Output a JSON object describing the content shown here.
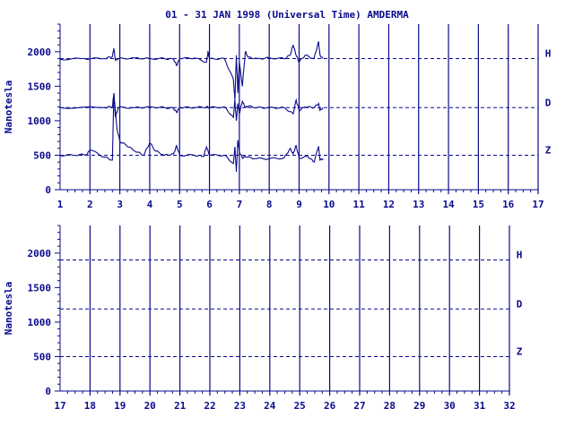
{
  "title": "01 - 31 JAN 1998 (Universal Time) AMDERMA",
  "colors": {
    "ink": "#0a0a8c",
    "background": "#ffffff"
  },
  "chart_data": [
    {
      "type": "line",
      "ylabel": "Nanotesla",
      "ylim": [
        0,
        2400
      ],
      "yticks": [
        0,
        500,
        1000,
        1500,
        2000
      ],
      "xlim": [
        1,
        17
      ],
      "xticks": [
        1,
        2,
        3,
        4,
        5,
        6,
        7,
        8,
        9,
        10,
        11,
        12,
        13,
        14,
        15,
        16,
        17
      ],
      "grid": "vertical day lines",
      "baselines": [
        {
          "name": "H",
          "value": 1900
        },
        {
          "name": "D",
          "value": 1190
        },
        {
          "name": "Z",
          "value": 500
        }
      ],
      "series": [
        {
          "name": "H",
          "x": [
            1.0,
            1.8,
            2.5,
            2.75,
            2.8,
            2.85,
            2.95,
            3.5,
            4.0,
            4.5,
            4.8,
            4.9,
            5.0,
            5.5,
            5.9,
            5.95,
            6.0,
            6.5,
            6.8,
            6.85,
            6.9,
            6.95,
            7.0,
            7.1,
            7.2,
            7.3,
            7.6,
            8.0,
            8.5,
            8.7,
            8.8,
            8.9,
            9.0,
            9.2,
            9.5,
            9.65,
            9.7,
            9.8
          ],
          "values": [
            1890,
            1900,
            1900,
            1930,
            2050,
            1880,
            1900,
            1910,
            1900,
            1900,
            1890,
            1800,
            1900,
            1910,
            1850,
            2000,
            1900,
            1900,
            1600,
            1300,
            1950,
            1400,
            1850,
            1500,
            2000,
            1920,
            1900,
            1910,
            1900,
            1950,
            2100,
            1950,
            1850,
            1950,
            1900,
            2150,
            1950,
            1900
          ]
        },
        {
          "name": "D",
          "x": [
            1.0,
            2.5,
            2.75,
            2.8,
            2.85,
            2.95,
            3.5,
            4.0,
            4.5,
            4.8,
            4.9,
            5.0,
            5.5,
            5.9,
            6.0,
            6.5,
            6.8,
            6.85,
            6.9,
            6.95,
            7.0,
            7.1,
            7.2,
            7.3,
            7.6,
            8.0,
            8.5,
            8.8,
            8.9,
            9.0,
            9.2,
            9.5,
            9.65,
            9.7,
            9.8
          ],
          "values": [
            1190,
            1190,
            1200,
            1400,
            1050,
            1190,
            1190,
            1200,
            1190,
            1180,
            1120,
            1190,
            1190,
            1200,
            1190,
            1200,
            1050,
            1300,
            1000,
            1250,
            1100,
            1280,
            1190,
            1210,
            1190,
            1190,
            1190,
            1100,
            1300,
            1150,
            1200,
            1190,
            1250,
            1150,
            1190
          ]
        },
        {
          "name": "Z",
          "x": [
            1.0,
            1.5,
            1.9,
            2.0,
            2.5,
            2.75,
            2.8,
            2.85,
            2.9,
            3.0,
            3.2,
            3.5,
            3.8,
            4.0,
            4.2,
            4.5,
            4.8,
            4.9,
            5.0,
            5.5,
            5.8,
            5.9,
            6.0,
            6.5,
            6.8,
            6.85,
            6.9,
            6.95,
            7.0,
            7.1,
            7.2,
            7.5,
            8.0,
            8.5,
            8.7,
            8.8,
            8.9,
            9.0,
            9.3,
            9.5,
            9.65,
            9.7,
            9.8
          ],
          "values": [
            500,
            500,
            510,
            580,
            470,
            430,
            1400,
            1150,
            900,
            700,
            650,
            560,
            500,
            680,
            560,
            500,
            520,
            640,
            500,
            500,
            480,
            620,
            500,
            500,
            380,
            620,
            260,
            720,
            550,
            460,
            480,
            450,
            450,
            460,
            600,
            520,
            640,
            460,
            480,
            400,
            630,
            430,
            450
          ]
        }
      ]
    },
    {
      "type": "line",
      "ylabel": "Nanotesla",
      "ylim": [
        0,
        2400
      ],
      "yticks": [
        0,
        500,
        1000,
        1500,
        2000
      ],
      "xlim": [
        17,
        32
      ],
      "xticks": [
        17,
        18,
        19,
        20,
        21,
        22,
        23,
        24,
        25,
        26,
        27,
        28,
        29,
        30,
        31,
        32
      ],
      "grid": "vertical day lines",
      "baselines": [
        {
          "name": "H",
          "value": 1900
        },
        {
          "name": "D",
          "value": 1190
        },
        {
          "name": "Z",
          "value": 500
        }
      ],
      "series": []
    }
  ]
}
